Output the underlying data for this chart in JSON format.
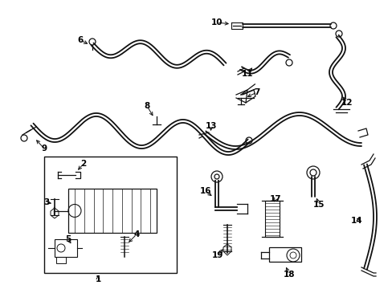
{
  "background_color": "#ffffff",
  "line_color": "#111111",
  "label_color": "#000000",
  "figsize": [
    4.89,
    3.6
  ],
  "dpi": 100,
  "label_fontsize": 7.5,
  "lw_tube": 1.3,
  "lw_part": 0.9
}
